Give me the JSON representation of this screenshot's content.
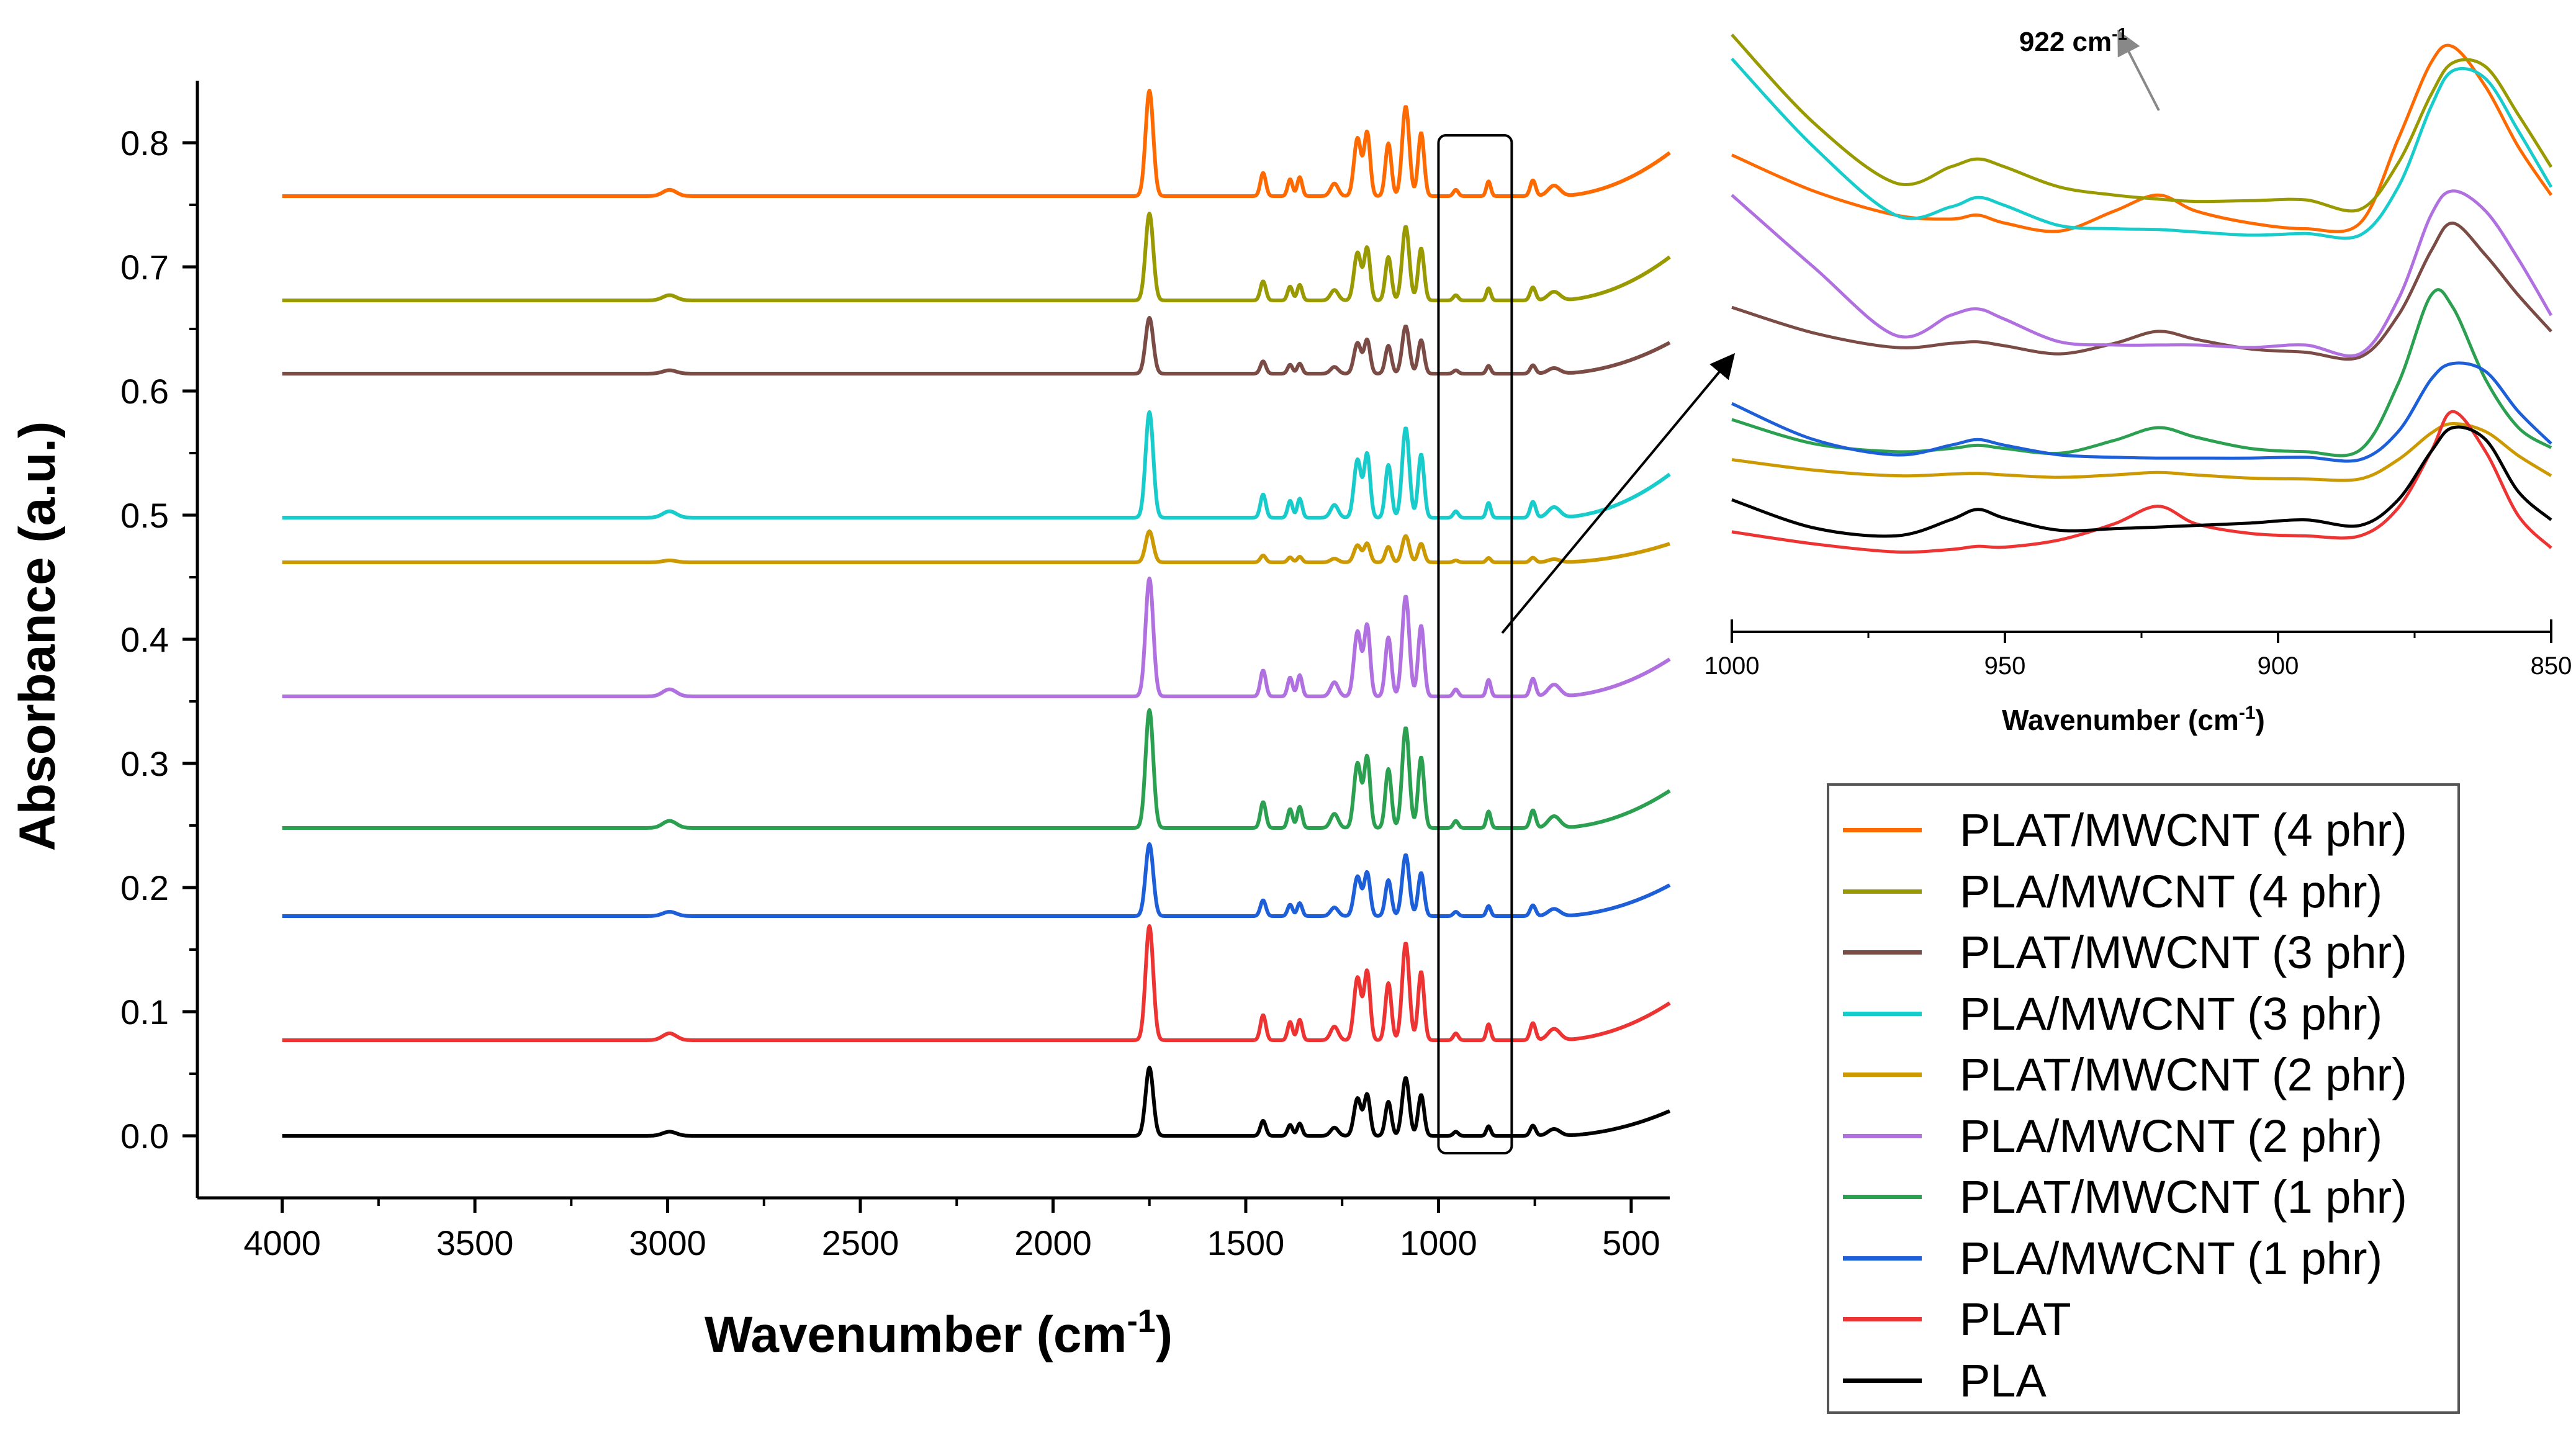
{
  "chart_data": [
    {
      "type": "line",
      "title": "",
      "xlabel": "Wavenumber (cm",
      "xlabel_superscript": "-1",
      "xlabel_close": ")",
      "ylabel": "Absorbance (a.u.)",
      "xlim": [
        4220,
        400
      ],
      "ylim": [
        -0.05,
        0.85
      ],
      "xticks": [
        4000,
        3500,
        3000,
        2500,
        2000,
        1500,
        1000,
        500
      ],
      "xtick_labels": [
        "4000",
        "3500",
        "3000",
        "2500",
        "2000",
        "1500",
        "1000",
        "500"
      ],
      "yticks": [
        0.0,
        0.1,
        0.2,
        0.3,
        0.4,
        0.5,
        0.6,
        0.7,
        0.8
      ],
      "ytick_labels": [
        "0.0",
        "0.1",
        "0.2",
        "0.3",
        "0.4",
        "0.5",
        "0.6",
        "0.7",
        "0.8"
      ],
      "highlight_region": [
        1000,
        810
      ],
      "peak_template": {
        "centers": [
          1750,
          1455,
          1385,
          1360,
          1270,
          1210,
          1185,
          1130,
          1085,
          1045,
          955,
          870,
          755,
          700
        ],
        "relative_heights": [
          1.0,
          0.22,
          0.16,
          0.18,
          0.12,
          0.55,
          0.6,
          0.5,
          0.85,
          0.6,
          0.06,
          0.14,
          0.15,
          0.1
        ],
        "widths": [
          14,
          10,
          9,
          9,
          14,
          13,
          11,
          11,
          13,
          11,
          9,
          8,
          10,
          22
        ]
      },
      "series": [
        {
          "name": "PLAT/MWCNT (4 phr)",
          "color": "#ff6a00",
          "baseline": 0.757,
          "peak_height": 0.085,
          "end_rise": 0.035
        },
        {
          "name": "PLA/MWCNT (4 phr)",
          "color": "#999900",
          "baseline": 0.673,
          "peak_height": 0.07,
          "end_rise": 0.035
        },
        {
          "name": "PLAT/MWCNT (3 phr)",
          "color": "#7b4b45",
          "baseline": 0.614,
          "peak_height": 0.045,
          "end_rise": 0.025
        },
        {
          "name": "PLA/MWCNT (3 phr)",
          "color": "#19cccc",
          "baseline": 0.498,
          "peak_height": 0.085,
          "end_rise": 0.035
        },
        {
          "name": "PLAT/MWCNT (2 phr)",
          "color": "#cc9900",
          "baseline": 0.462,
          "peak_height": 0.025,
          "end_rise": 0.015
        },
        {
          "name": "PLA/MWCNT (2 phr)",
          "color": "#b070e0",
          "baseline": 0.354,
          "peak_height": 0.095,
          "end_rise": 0.03
        },
        {
          "name": "PLAT/MWCNT (1 phr)",
          "color": "#2aa050",
          "baseline": 0.248,
          "peak_height": 0.095,
          "end_rise": 0.03
        },
        {
          "name": "PLA/MWCNT (1 phr)",
          "color": "#1c5fd8",
          "baseline": 0.177,
          "peak_height": 0.058,
          "end_rise": 0.025
        },
        {
          "name": "PLAT",
          "color": "#ee3333",
          "baseline": 0.077,
          "peak_height": 0.092,
          "end_rise": 0.03
        },
        {
          "name": "PLA",
          "color": "#000000",
          "baseline": 0.0,
          "peak_height": 0.055,
          "end_rise": 0.02
        }
      ]
    },
    {
      "type": "line",
      "title": "",
      "xlabel": "Wavenumber (cm",
      "xlabel_superscript": "-1",
      "xlabel_close": ")",
      "ylabel": "",
      "xlim": [
        1000,
        850
      ],
      "xticks": [
        1000,
        950,
        900,
        850
      ],
      "xtick_labels": [
        "1000",
        "950",
        "900",
        "850"
      ],
      "annotation": {
        "text": "922 cm",
        "superscript": "-1",
        "x": 922
      },
      "x": [
        1000,
        985,
        970,
        960,
        955,
        950,
        940,
        930,
        922,
        915,
        905,
        895,
        885,
        878,
        872,
        868,
        862,
        856,
        850
      ],
      "series": [
        {
          "name": "PLAT/MWCNT (4 phr)",
          "y": [
            0.84,
            0.795,
            0.765,
            0.76,
            0.765,
            0.755,
            0.745,
            0.77,
            0.79,
            0.77,
            0.755,
            0.748,
            0.755,
            0.86,
            0.955,
            0.975,
            0.925,
            0.85,
            0.79
          ]
        },
        {
          "name": "PLA/MWCNT (4 phr)",
          "y": [
            0.99,
            0.88,
            0.805,
            0.825,
            0.835,
            0.825,
            0.8,
            0.79,
            0.785,
            0.782,
            0.783,
            0.784,
            0.772,
            0.83,
            0.915,
            0.955,
            0.95,
            0.89,
            0.825
          ]
        },
        {
          "name": "PLAT/MWCNT (3 phr)",
          "y": [
            0.65,
            0.618,
            0.6,
            0.605,
            0.607,
            0.602,
            0.592,
            0.605,
            0.62,
            0.61,
            0.598,
            0.594,
            0.588,
            0.64,
            0.72,
            0.755,
            0.715,
            0.665,
            0.62
          ]
        },
        {
          "name": "PLA/MWCNT (3 phr)",
          "y": [
            0.96,
            0.85,
            0.765,
            0.775,
            0.787,
            0.777,
            0.752,
            0.748,
            0.747,
            0.744,
            0.74,
            0.742,
            0.74,
            0.8,
            0.9,
            0.945,
            0.935,
            0.87,
            0.8
          ]
        },
        {
          "name": "PLAT/MWCNT (2 phr)",
          "y": [
            0.46,
            0.447,
            0.44,
            0.442,
            0.443,
            0.441,
            0.438,
            0.441,
            0.444,
            0.441,
            0.437,
            0.436,
            0.436,
            0.46,
            0.493,
            0.505,
            0.495,
            0.465,
            0.44
          ]
        },
        {
          "name": "PLA/MWCNT (2 phr)",
          "y": [
            0.79,
            0.7,
            0.615,
            0.64,
            0.648,
            0.635,
            0.607,
            0.603,
            0.603,
            0.603,
            0.6,
            0.603,
            0.592,
            0.66,
            0.765,
            0.795,
            0.77,
            0.71,
            0.64
          ]
        },
        {
          "name": "PLAT/MWCNT (1 phr)",
          "y": [
            0.51,
            0.48,
            0.47,
            0.474,
            0.478,
            0.474,
            0.468,
            0.484,
            0.5,
            0.488,
            0.474,
            0.47,
            0.472,
            0.555,
            0.665,
            0.65,
            0.56,
            0.5,
            0.475
          ]
        },
        {
          "name": "PLA/MWCNT (1 phr)",
          "y": [
            0.53,
            0.485,
            0.466,
            0.478,
            0.485,
            0.478,
            0.466,
            0.463,
            0.462,
            0.462,
            0.462,
            0.463,
            0.46,
            0.495,
            0.56,
            0.58,
            0.57,
            0.52,
            0.48
          ]
        },
        {
          "name": "PLAT",
          "y": [
            0.37,
            0.355,
            0.345,
            0.348,
            0.352,
            0.351,
            0.36,
            0.38,
            0.402,
            0.38,
            0.368,
            0.365,
            0.365,
            0.4,
            0.47,
            0.52,
            0.47,
            0.39,
            0.35
          ]
        },
        {
          "name": "PLA",
          "y": [
            0.41,
            0.375,
            0.365,
            0.385,
            0.398,
            0.387,
            0.372,
            0.374,
            0.376,
            0.378,
            0.381,
            0.385,
            0.378,
            0.41,
            0.47,
            0.5,
            0.485,
            0.42,
            0.385
          ]
        }
      ]
    }
  ]
}
